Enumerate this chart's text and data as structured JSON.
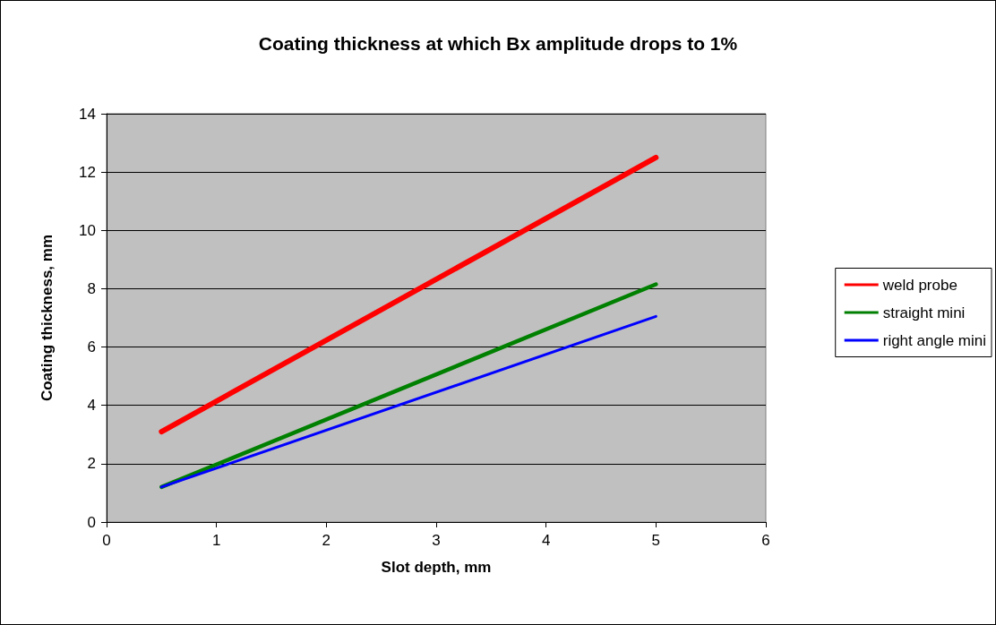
{
  "chart_data": {
    "type": "line",
    "title": "Coating thickness at which Bx amplitude drops to 1%",
    "xlabel": "Slot depth, mm",
    "ylabel": "Coating thickness, mm",
    "series": [
      {
        "name": "weld probe",
        "color": "#ff0000",
        "values": [
          3.1,
          12.5
        ]
      },
      {
        "name": "straight mini",
        "color": "#008000",
        "values": [
          1.2,
          8.15
        ]
      },
      {
        "name": "right angle mini",
        "color": "#0000ff",
        "values": [
          1.2,
          7.05
        ]
      }
    ],
    "x": [
      0.5,
      5
    ],
    "xlim": [
      0,
      6
    ],
    "xticks": [
      0,
      1,
      2,
      3,
      4,
      5,
      6
    ],
    "ylim": [
      0,
      14
    ],
    "yticks": [
      0,
      2,
      4,
      6,
      8,
      10,
      12,
      14
    ],
    "grid": "y",
    "legend": "right",
    "marker": "none",
    "line_style": "solid"
  }
}
